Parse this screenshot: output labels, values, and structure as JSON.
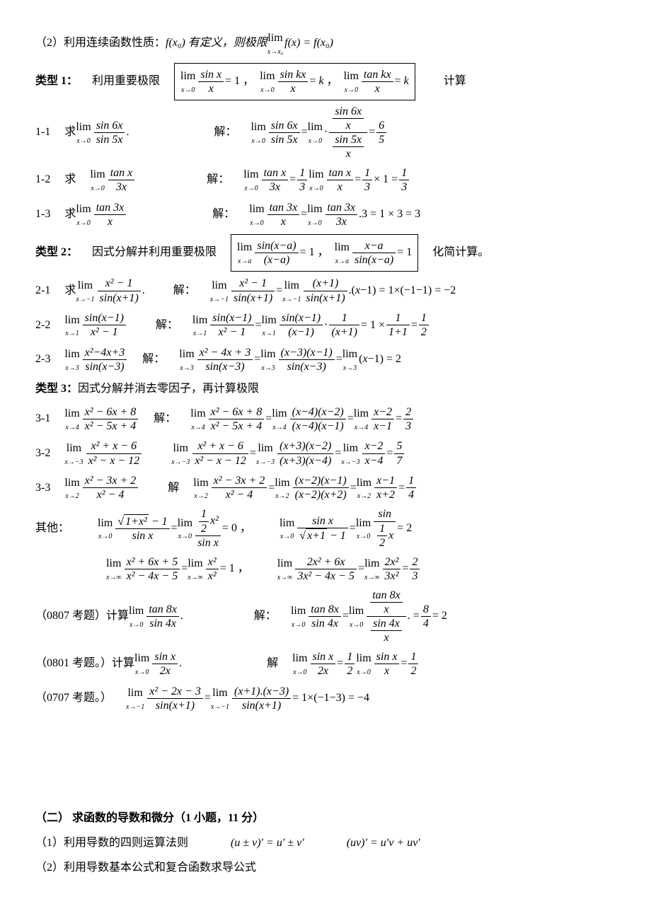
{
  "intro_line2": "（2）利用连续函数性质：",
  "intro_fx0": "f(x₀) 有定义，则极限",
  "intro_lim_fx": "f(x) = f(x₀)",
  "type1_label": "类型 1：",
  "type1_desc": "利用重要极限",
  "type1_calc": "计算",
  "type2_label": "类型 2：",
  "type2_desc": "因式分解并利用重要极限",
  "type2_calc": "化简计算。",
  "type3_label": "类型 3：",
  "type3_desc": "因式分解并消去零因子，再计算极限",
  "others_label": "其他：",
  "exam0807": "（0807 考题）计算",
  "exam0801": "（0801 考题。）计算",
  "exam0707": "（0707 考题。）",
  "section2_title": "（二）  求函数的导数和微分（1 小题，11 分）",
  "section2_line1": "（1）利用导数的四则运算法则",
  "section2_rule1": "(u ± v)′ = u′ ± v′",
  "section2_rule2": "(uv)′ = u′v + uv′",
  "section2_line2": "（2）利用导数基本公式和复合函数求导公式",
  "qiu": "求",
  "jie": "解：",
  "jie2": "解"
}
